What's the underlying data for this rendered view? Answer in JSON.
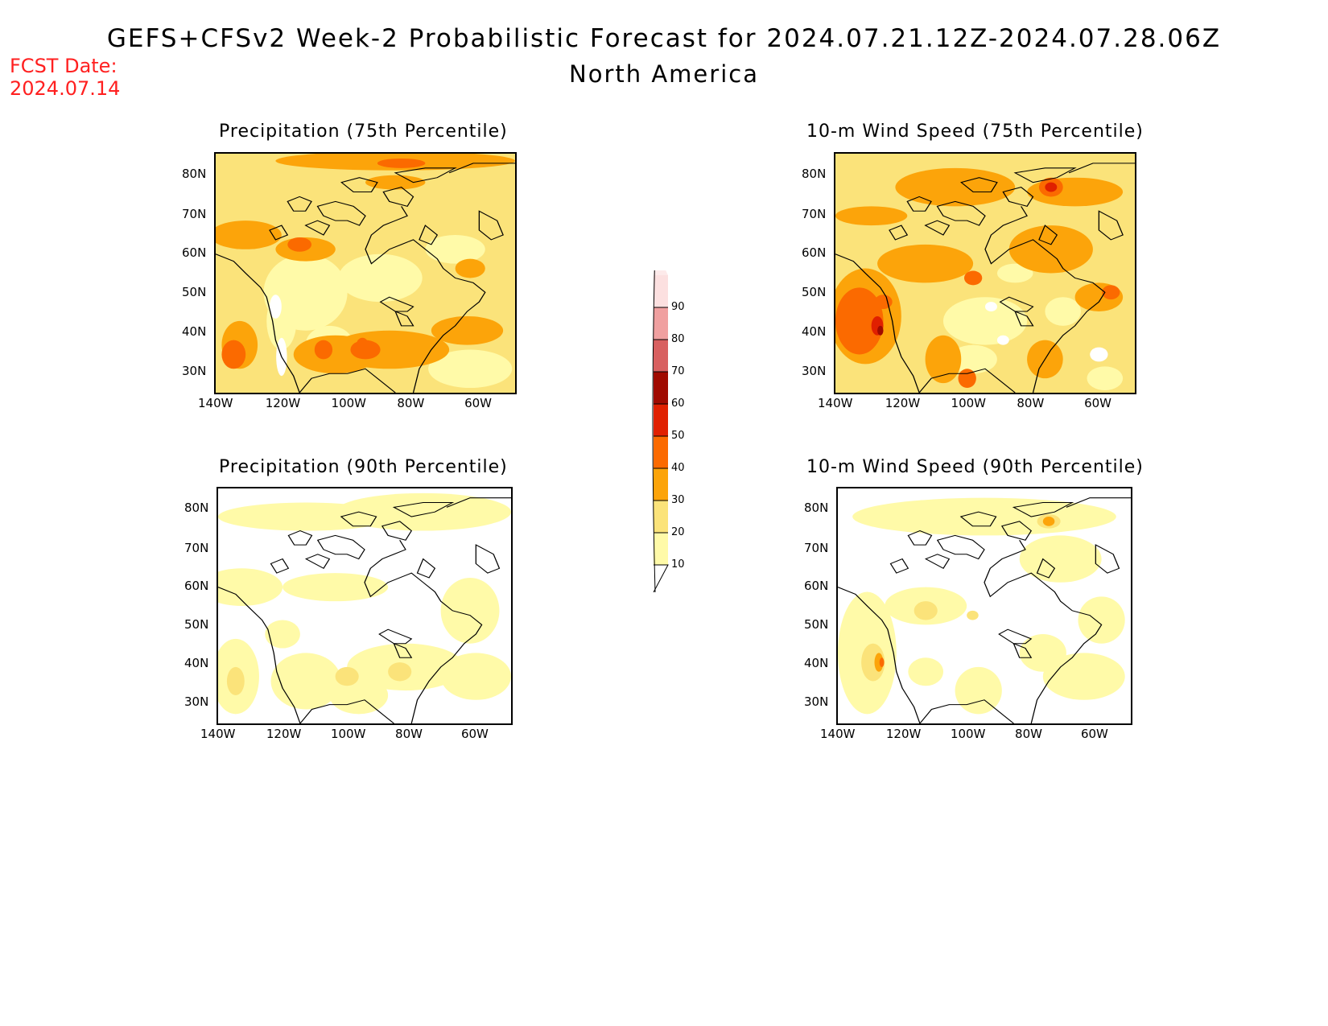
{
  "header": {
    "title": "GEFS+CFSv2 Week-2 Probabilistic Forecast for 2024.07.21.12Z-2024.07.28.06Z",
    "region": "North America",
    "fcst_label": "FCST Date:",
    "fcst_date": "2024.07.14"
  },
  "panels": [
    {
      "title": "Precipitation (75th Percentile)",
      "variable": "precip75"
    },
    {
      "title": "10-m Wind Speed (75th Percentile)",
      "variable": "wind75"
    },
    {
      "title": "Precipitation (90th Percentile)",
      "variable": "precip90"
    },
    {
      "title": "10-m Wind Speed (90th Percentile)",
      "variable": "wind90"
    }
  ],
  "axes": {
    "lat_labels": [
      "80N",
      "70N",
      "60N",
      "50N",
      "40N",
      "30N"
    ],
    "lon_labels": [
      "140W",
      "120W",
      "100W",
      "80W",
      "60W"
    ]
  },
  "colorbar": {
    "levels": [
      "10",
      "20",
      "30",
      "40",
      "50",
      "60",
      "70",
      "80",
      "90"
    ],
    "colors": [
      "#fffaa8",
      "#fbe37a",
      "#fca40a",
      "#fb6a00",
      "#e02000",
      "#a00a00",
      "#d86060",
      "#f0a0a0",
      "#fce0e0"
    ]
  },
  "colors": {
    "fcst_text": "#ff2020",
    "background": "#ffffff"
  }
}
